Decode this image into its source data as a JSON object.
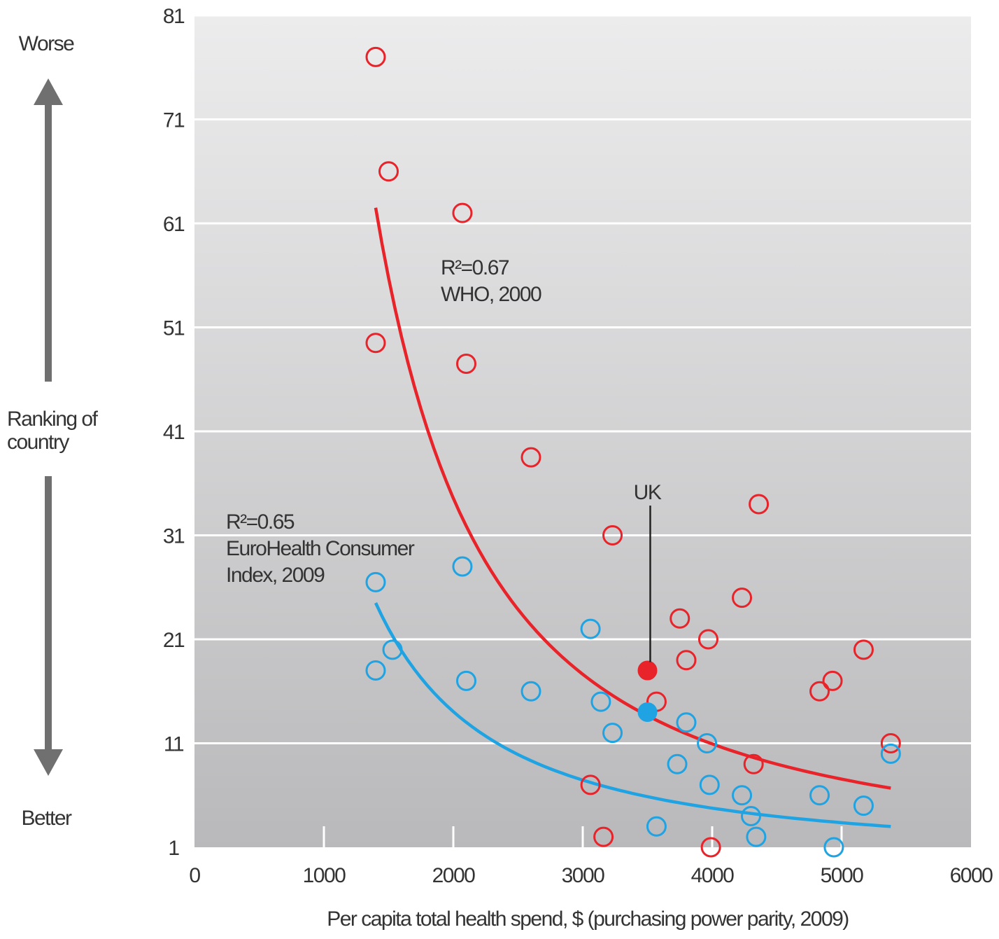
{
  "chart_data": {
    "type": "scatter",
    "xlabel": "Per capita total health spend, $ (purchasing power parity, 2009)",
    "xlim": [
      0,
      6000
    ],
    "ylim": [
      1,
      81
    ],
    "x_ticks": [
      "0",
      "1000",
      "2000",
      "3000",
      "4000",
      "5000",
      "6000"
    ],
    "y_ticks": [
      "1",
      "11",
      "21",
      "31",
      "41",
      "51",
      "61",
      "71",
      "81"
    ],
    "side_labels": {
      "top": "Worse",
      "middle": "Ranking of country",
      "bottom": "Better"
    },
    "series": [
      {
        "label": "R²=0.67 WHO, 2000",
        "annotation_lines": [
          "R²=0.67",
          "WHO, 2000"
        ],
        "color": "#e8232a",
        "points": [
          [
            1400,
            77
          ],
          [
            1500,
            66
          ],
          [
            2070,
            62
          ],
          [
            1400,
            49.5
          ],
          [
            2100,
            47.5
          ],
          [
            2600,
            38.5
          ],
          [
            3230,
            31
          ],
          [
            3750,
            23
          ],
          [
            3970,
            21
          ],
          [
            3800,
            19
          ],
          [
            4230,
            25
          ],
          [
            4360,
            34
          ],
          [
            4830,
            16
          ],
          [
            4930,
            17
          ],
          [
            5170,
            20
          ],
          [
            5380,
            11
          ],
          [
            3060,
            7
          ],
          [
            3160,
            2
          ],
          [
            3990,
            1
          ],
          [
            4320,
            9
          ],
          [
            3570,
            15
          ]
        ],
        "highlight": {
          "label": "UK",
          "point": [
            3500,
            18
          ]
        },
        "trend": {
          "from": 1400,
          "to": 5380,
          "a": 62.5,
          "b": -1.66
        }
      },
      {
        "label": "R²=0.65 EuroHealth Consumer Index, 2009",
        "annotation_lines": [
          "R²=0.65",
          "EuroHealth Consumer",
          "Index, 2009"
        ],
        "color": "#1fa3e2",
        "points": [
          [
            1400,
            26.5
          ],
          [
            2070,
            28
          ],
          [
            1400,
            18
          ],
          [
            1530,
            20
          ],
          [
            2100,
            17
          ],
          [
            2600,
            16
          ],
          [
            3060,
            22
          ],
          [
            3140,
            15
          ],
          [
            3230,
            12
          ],
          [
            3800,
            13
          ],
          [
            3960,
            11
          ],
          [
            3730,
            9
          ],
          [
            3980,
            7
          ],
          [
            4230,
            6
          ],
          [
            4300,
            4
          ],
          [
            4340,
            2
          ],
          [
            3570,
            3
          ],
          [
            4830,
            6
          ],
          [
            5170,
            5
          ],
          [
            5380,
            10
          ],
          [
            4940,
            1
          ]
        ],
        "highlight": {
          "label": "UK",
          "point": [
            3500,
            14
          ]
        },
        "trend": {
          "from": 1400,
          "to": 5380,
          "a": 24.5,
          "b": -1.56
        }
      }
    ],
    "grid": true
  },
  "colors": {
    "background_top": "#ececed",
    "background_bottom": "#b9b9bb",
    "grid": "#ffffff",
    "arrow": "#707070"
  }
}
